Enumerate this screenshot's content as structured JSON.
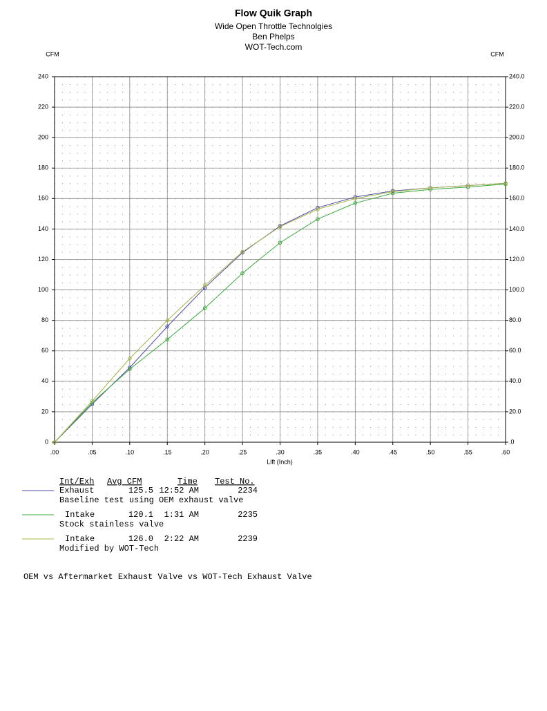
{
  "chart_data": {
    "type": "line",
    "title": "Flow Quik Graph",
    "subtitles": [
      "Wide Open Throttle Technolgies",
      "Ben Phelps",
      "WOT-Tech.com"
    ],
    "y_label": "CFM",
    "y2_label": "CFM",
    "x_label": "Lift (Inch)",
    "x": [
      0,
      0.05,
      0.1,
      0.15,
      0.2,
      0.25,
      0.3,
      0.35,
      0.4,
      0.45,
      0.5,
      0.55,
      0.6
    ],
    "xlim": [
      0,
      0.6
    ],
    "xticks": [
      {
        "value": 0,
        "label": ".00"
      },
      {
        "value": 0.05,
        "label": ".05"
      },
      {
        "value": 0.1,
        "label": ".10"
      },
      {
        "value": 0.15,
        "label": ".15"
      },
      {
        "value": 0.2,
        "label": ".20"
      },
      {
        "value": 0.25,
        "label": ".25"
      },
      {
        "value": 0.3,
        "label": ".30"
      },
      {
        "value": 0.35,
        "label": ".35"
      },
      {
        "value": 0.4,
        "label": ".40"
      },
      {
        "value": 0.45,
        "label": ".45"
      },
      {
        "value": 0.5,
        "label": ".50"
      },
      {
        "value": 0.55,
        "label": ".55"
      },
      {
        "value": 0.6,
        "label": ".60"
      }
    ],
    "ylim": [
      0,
      240
    ],
    "yticks": [
      0,
      20,
      40,
      60,
      80,
      100,
      120,
      140,
      160,
      180,
      200,
      220,
      240
    ],
    "y2lim": [
      0,
      240
    ],
    "y2ticks": [
      {
        "value": 0,
        "label": ".0"
      },
      {
        "value": 20,
        "label": "20.0"
      },
      {
        "value": 40,
        "label": "40.0"
      },
      {
        "value": 60,
        "label": "60.0"
      },
      {
        "value": 80,
        "label": "80.0"
      },
      {
        "value": 100,
        "label": "100.0"
      },
      {
        "value": 120,
        "label": "120.0"
      },
      {
        "value": 140,
        "label": "140.0"
      },
      {
        "value": 160,
        "label": "160.0"
      },
      {
        "value": 180,
        "label": "180.0"
      },
      {
        "value": 200,
        "label": "200.0"
      },
      {
        "value": 220,
        "label": "220.0"
      },
      {
        "value": 240,
        "label": "240.0"
      }
    ],
    "grid": true,
    "minor_grid": true,
    "legend_headers": [
      "Int/Exh",
      "Avg CFM",
      "Time",
      "Test No."
    ],
    "series": [
      {
        "name": "Exhaust",
        "color": "#4a4aa8",
        "avg_cfm": "125.5",
        "time": "12:52 AM",
        "test_no": 2234,
        "description": "Baseline test using OEM exhaust valve",
        "values": [
          0,
          25,
          49,
          76,
          101.5,
          124.5,
          142,
          154,
          161,
          165,
          167,
          168.5,
          170
        ]
      },
      {
        "name": "Intake",
        "color": "#3aa83a",
        "avg_cfm": "120.1",
        "time": "1:31 AM",
        "test_no": 2235,
        "description": "Stock stainless valve",
        "values": [
          0,
          26,
          48,
          67.5,
          88,
          111,
          131,
          146.5,
          157,
          163.5,
          166,
          167.5,
          169.5
        ]
      },
      {
        "name": "Intake",
        "color": "#a8b44a",
        "avg_cfm": "126.0",
        "time": "2:22 AM",
        "test_no": 2239,
        "description": "Modified by WOT-Tech",
        "values": [
          0,
          27,
          55,
          80,
          103,
          125,
          141.5,
          153,
          160,
          164.5,
          167,
          168.5,
          170
        ]
      }
    ],
    "note": "OEM vs Aftermarket Exhaust Valve vs WOT-Tech Exhaust Valve"
  }
}
